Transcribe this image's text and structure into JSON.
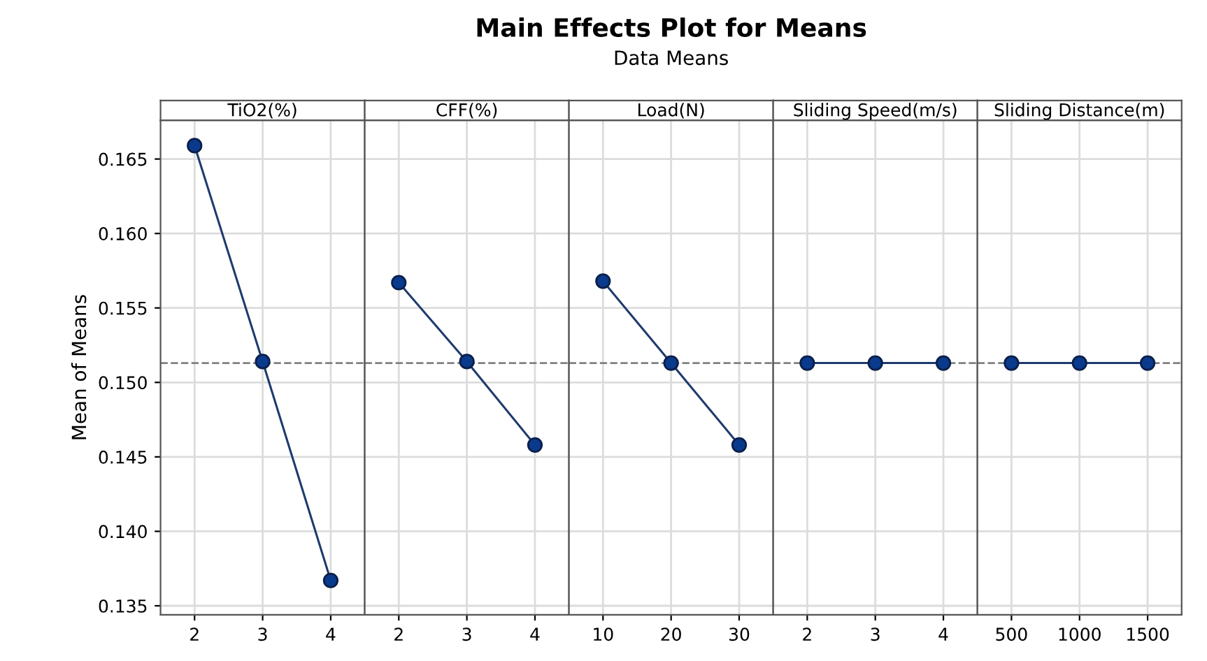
{
  "chart_data": [
    {
      "type": "line",
      "xlabel": "TiO2(%)",
      "ylabel": "Mean of Means",
      "categories": [
        "2",
        "3",
        "4"
      ],
      "series": [
        {
          "color": "#1f3a6e",
          "values": [
            0.1659,
            0.1514,
            0.1367
          ]
        }
      ],
      "ylim": [
        0.1344,
        0.1676
      ],
      "yticks": [
        0.135,
        {
          "value": 0.14,
          "label": "0.140"
        },
        0.145,
        {
          "value": 0.15,
          "label": "0.150"
        },
        0.155,
        {
          "value": 0.16,
          "label": "0.160"
        },
        0.165
      ],
      "ref_lines": [
        {
          "axis": "y",
          "value": 0.1513,
          "color": "#808080",
          "line_style": "dashed"
        }
      ],
      "grid": true,
      "marker": "circle"
    },
    {
      "type": "line",
      "xlabel": "CFF(%)",
      "categories": [
        "2",
        "3",
        "4"
      ],
      "series": [
        {
          "color": "#1f3a6e",
          "values": [
            0.1567,
            0.1514,
            0.1458
          ]
        }
      ],
      "ylim": [
        0.1344,
        0.1676
      ],
      "tick_labels": "x",
      "ref_lines": [
        {
          "axis": "y",
          "value": 0.1513,
          "color": "#808080",
          "line_style": "dashed"
        }
      ],
      "grid": true,
      "marker": "circle"
    },
    {
      "type": "line",
      "title": "Main Effects Plot for Means",
      "subtitle": "Data Means",
      "xlabel": "Load(N)",
      "categories": [
        "10",
        "20",
        "30"
      ],
      "series": [
        {
          "color": "#1f3a6e",
          "values": [
            0.1568,
            0.1513,
            0.1458
          ]
        }
      ],
      "ylim": [
        0.1344,
        0.1676
      ],
      "tick_labels": "x",
      "ref_lines": [
        {
          "axis": "y",
          "value": 0.1513,
          "color": "#808080",
          "line_style": "dashed"
        }
      ],
      "grid": true,
      "marker": "circle"
    },
    {
      "type": "line",
      "xlabel": "Sliding Speed(m/s)",
      "categories": [
        "2",
        "3",
        "4"
      ],
      "series": [
        {
          "color": "#1f3a6e",
          "values": [
            0.1513,
            0.1513,
            0.1513
          ]
        }
      ],
      "ylim": [
        0.1344,
        0.1676
      ],
      "tick_labels": "x",
      "ref_lines": [
        {
          "axis": "y",
          "value": 0.1513,
          "color": "#808080",
          "line_style": "dashed"
        }
      ],
      "grid": true,
      "marker": "circle"
    },
    {
      "type": "line",
      "xlabel": "Sliding Distance(m)",
      "categories": [
        "500",
        "1000",
        "1500"
      ],
      "series": [
        {
          "color": "#1f3a6e",
          "values": [
            0.1513,
            0.1513,
            0.1513
          ]
        }
      ],
      "ylim": [
        0.1344,
        0.1676
      ],
      "tick_labels": "x",
      "ref_lines": [
        {
          "axis": "y",
          "value": 0.1513,
          "color": "#808080",
          "line_style": "dashed"
        }
      ],
      "grid": true,
      "marker": "circle"
    }
  ]
}
